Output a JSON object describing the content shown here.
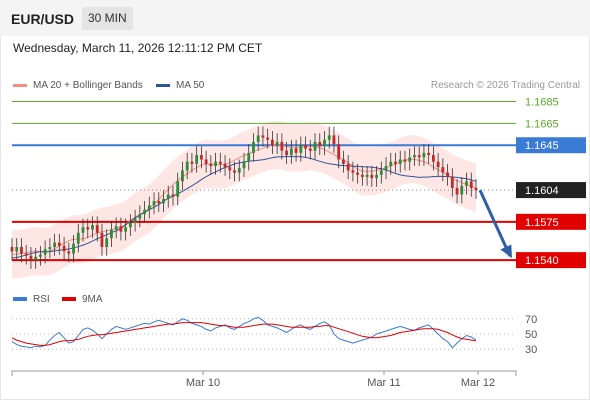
{
  "header": {
    "symbol": "EUR/USD",
    "timeframe": "30 MIN"
  },
  "datetime": "Wednesday, March 11, 2026 12:11:12 PM CET",
  "legend": {
    "ma20": {
      "label": "MA 20 + Bollinger Bands",
      "color": "#f08f86"
    },
    "ma50": {
      "label": "MA 50",
      "color": "#2e5597"
    }
  },
  "copyright": "Research © 2026 Trading Central",
  "chart_data": [
    {
      "type": "candlestick",
      "title": "EUR/USD 30 MIN",
      "levels": [
        {
          "label": "1.1685",
          "value": 1.1685,
          "kind": "target",
          "color": "#5fa62f"
        },
        {
          "label": "1.1665",
          "value": 1.1665,
          "kind": "target",
          "color": "#5fa62f"
        },
        {
          "label": "1.1645",
          "value": 1.1645,
          "kind": "pivot",
          "color": "#3a7bd5"
        },
        {
          "label": "1.1604",
          "value": 1.1604,
          "kind": "last-price",
          "color": "#222222"
        },
        {
          "label": "1.1575",
          "value": 1.1575,
          "kind": "support",
          "color": "#e00000"
        },
        {
          "label": "1.1540",
          "value": 1.154,
          "kind": "support",
          "color": "#e00000"
        }
      ],
      "x_ticks": [
        "Mar 10",
        "Mar 11",
        "Mar 12"
      ],
      "candle_closes": [
        1.1548,
        1.1552,
        1.1546,
        1.1544,
        1.154,
        1.1543,
        1.1545,
        1.155,
        1.1552,
        1.1556,
        1.1553,
        1.1548,
        1.1546,
        1.1555,
        1.1565,
        1.157,
        1.1568,
        1.1572,
        1.1565,
        1.1552,
        1.156,
        1.1568,
        1.1571,
        1.1566,
        1.157,
        1.1574,
        1.1578,
        1.1582,
        1.1586,
        1.159,
        1.1594,
        1.1592,
        1.1596,
        1.16,
        1.1598,
        1.1612,
        1.1622,
        1.163,
        1.1628,
        1.1636,
        1.1632,
        1.1628,
        1.1626,
        1.163,
        1.1628,
        1.1625,
        1.1622,
        1.162,
        1.1624,
        1.163,
        1.1638,
        1.1648,
        1.1654,
        1.1652,
        1.165,
        1.1645,
        1.1648,
        1.164,
        1.1636,
        1.1642,
        1.1638,
        1.1645,
        1.1642,
        1.164,
        1.1648,
        1.1644,
        1.165,
        1.1654,
        1.1646,
        1.1632,
        1.1628,
        1.1622,
        1.162,
        1.1618,
        1.1616,
        1.1618,
        1.1615,
        1.1618,
        1.1622,
        1.1626,
        1.163,
        1.1628,
        1.1632,
        1.163,
        1.1634,
        1.1636,
        1.1634,
        1.1638,
        1.1636,
        1.163,
        1.1625,
        1.162,
        1.1616,
        1.1606,
        1.16,
        1.1608,
        1.1612,
        1.1606,
        1.1604
      ],
      "projection": {
        "from": 1.1604,
        "to": 1.154,
        "direction": "down"
      }
    },
    {
      "type": "line",
      "title": "RSI",
      "series": [
        {
          "name": "RSI",
          "color": "#3a7bd5",
          "values": [
            40,
            36,
            34,
            33,
            32,
            34,
            33,
            35,
            42,
            48,
            52,
            45,
            38,
            40,
            48,
            56,
            58,
            55,
            50,
            44,
            50,
            56,
            60,
            58,
            56,
            58,
            60,
            62,
            64,
            63,
            66,
            68,
            66,
            64,
            62,
            66,
            70,
            68,
            64,
            62,
            60,
            56,
            54,
            58,
            60,
            62,
            58,
            56,
            60,
            64,
            66,
            70,
            72,
            68,
            62,
            60,
            58,
            55,
            52,
            56,
            60,
            62,
            58,
            56,
            60,
            64,
            66,
            62,
            50,
            44,
            42,
            40,
            38,
            40,
            42,
            44,
            46,
            50,
            52,
            54,
            56,
            58,
            60,
            58,
            56,
            55,
            58,
            60,
            62,
            56,
            50,
            44,
            40,
            32,
            38,
            44,
            48,
            46,
            42
          ]
        },
        {
          "name": "9MA",
          "color": "#e00000",
          "values": [
            45,
            42,
            40,
            38,
            37,
            36,
            35,
            35,
            36,
            38,
            40,
            41,
            41,
            42,
            43,
            45,
            47,
            48,
            49,
            49,
            50,
            51,
            52,
            53,
            54,
            55,
            56,
            57,
            58,
            59,
            60,
            61,
            62,
            63,
            63,
            64,
            65,
            65,
            65,
            65,
            65,
            64,
            63,
            62,
            61,
            61,
            60,
            59,
            59,
            59,
            60,
            61,
            62,
            63,
            63,
            63,
            62,
            61,
            60,
            59,
            59,
            59,
            59,
            59,
            60,
            60,
            61,
            61,
            59,
            57,
            55,
            53,
            51,
            49,
            47,
            46,
            45,
            45,
            46,
            47,
            48,
            50,
            52,
            53,
            54,
            55,
            56,
            57,
            57,
            57,
            56,
            54,
            52,
            49,
            46,
            44,
            43,
            42,
            41
          ]
        }
      ],
      "y_ticks": [
        70,
        50,
        30
      ],
      "legend": [
        "RSI",
        "9MA"
      ]
    }
  ]
}
